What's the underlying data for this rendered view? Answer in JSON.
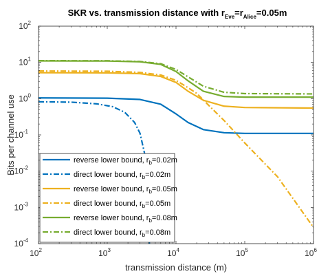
{
  "chart_data": {
    "type": "line",
    "title": {
      "main": "SKR vs. transmission distance with r",
      "sub1": "Eve",
      "eq": "=r",
      "sub2": "Alice",
      "tail": "=0.05m"
    },
    "xlabel": "transmission distance (m)",
    "ylabel": "Bits per channel use",
    "xscale": "log",
    "yscale": "log",
    "xlim": [
      100,
      1000000
    ],
    "ylim": [
      0.0001,
      100
    ],
    "grid": false,
    "legend_position": "bottom-left",
    "x_ticks": [
      {
        "base": "10",
        "exp": "2"
      },
      {
        "base": "10",
        "exp": "3"
      },
      {
        "base": "10",
        "exp": "4"
      },
      {
        "base": "10",
        "exp": "5"
      },
      {
        "base": "10",
        "exp": "6"
      }
    ],
    "y_ticks": [
      {
        "base": "10",
        "exp": "-4"
      },
      {
        "base": "10",
        "exp": "-3"
      },
      {
        "base": "10",
        "exp": "-2"
      },
      {
        "base": "10",
        "exp": "-1"
      },
      {
        "base": "10",
        "exp": "0"
      },
      {
        "base": "10",
        "exp": "1"
      },
      {
        "base": "10",
        "exp": "2"
      }
    ],
    "series": [
      {
        "legend_main": "reverse lower bound, r",
        "legend_sub": "b",
        "legend_tail": "=0.02m",
        "color": "#0072BD",
        "style": "solid",
        "points": [
          [
            100,
            1.05
          ],
          [
            1000,
            1.03
          ],
          [
            3000,
            0.95
          ],
          [
            6000,
            0.7
          ],
          [
            10000,
            0.38
          ],
          [
            15000,
            0.22
          ],
          [
            25000,
            0.14
          ],
          [
            50000,
            0.115
          ],
          [
            100000,
            0.11
          ],
          [
            1000000,
            0.11
          ]
        ]
      },
      {
        "legend_main": "direct lower bound, r",
        "legend_sub": "b",
        "legend_tail": "=0.02m",
        "color": "#0072BD",
        "style": "dashdot",
        "points": [
          [
            100,
            0.82
          ],
          [
            300,
            0.8
          ],
          [
            700,
            0.72
          ],
          [
            1200,
            0.6
          ],
          [
            1800,
            0.42
          ],
          [
            2500,
            0.22
          ],
          [
            3000,
            0.11
          ],
          [
            3500,
            0.03
          ],
          [
            3800,
            0.008
          ],
          [
            4000,
            0.0015
          ],
          [
            4100,
            0.0001
          ]
        ]
      },
      {
        "legend_main": "reverse lower bound, r",
        "legend_sub": "b",
        "legend_tail": "=0.05m",
        "color": "#EDB120",
        "style": "solid",
        "points": [
          [
            100,
            5.2
          ],
          [
            1000,
            5.15
          ],
          [
            3000,
            4.9
          ],
          [
            6000,
            4.1
          ],
          [
            10000,
            2.8
          ],
          [
            15000,
            1.6
          ],
          [
            25000,
            0.9
          ],
          [
            50000,
            0.62
          ],
          [
            100000,
            0.57
          ],
          [
            1000000,
            0.55
          ]
        ]
      },
      {
        "legend_main": "direct lower bound, r",
        "legend_sub": "b",
        "legend_tail": "=0.05m",
        "color": "#EDB120",
        "style": "dashdot",
        "points": [
          [
            100,
            5.8
          ],
          [
            1000,
            5.7
          ],
          [
            3000,
            5.3
          ],
          [
            6000,
            4.5
          ],
          [
            10000,
            3.2
          ],
          [
            15000,
            2.0
          ],
          [
            20000,
            1.4
          ],
          [
            30000,
            0.65
          ],
          [
            50000,
            0.25
          ],
          [
            100000,
            0.06
          ],
          [
            300000,
            0.007
          ],
          [
            1000000,
            0.00028
          ]
        ]
      },
      {
        "legend_main": "reverse lower bound, r",
        "legend_sub": "b",
        "legend_tail": "=0.08m",
        "color": "#77AC30",
        "style": "solid",
        "points": [
          [
            100,
            11
          ],
          [
            1000,
            10.9
          ],
          [
            3000,
            10.4
          ],
          [
            6000,
            8.8
          ],
          [
            10000,
            5.6
          ],
          [
            15000,
            3.1
          ],
          [
            25000,
            1.6
          ],
          [
            50000,
            1.15
          ],
          [
            100000,
            1.1
          ],
          [
            1000000,
            1.1
          ]
        ]
      },
      {
        "legend_main": "direct lower bound, r",
        "legend_sub": "b",
        "legend_tail": "=0.08m",
        "color": "#77AC30",
        "style": "dashdot",
        "points": [
          [
            100,
            11.2
          ],
          [
            1000,
            11.1
          ],
          [
            3000,
            10.6
          ],
          [
            6000,
            9.2
          ],
          [
            10000,
            6.4
          ],
          [
            15000,
            4.0
          ],
          [
            25000,
            2.2
          ],
          [
            50000,
            1.5
          ],
          [
            100000,
            1.38
          ],
          [
            1000000,
            1.35
          ]
        ]
      }
    ]
  }
}
